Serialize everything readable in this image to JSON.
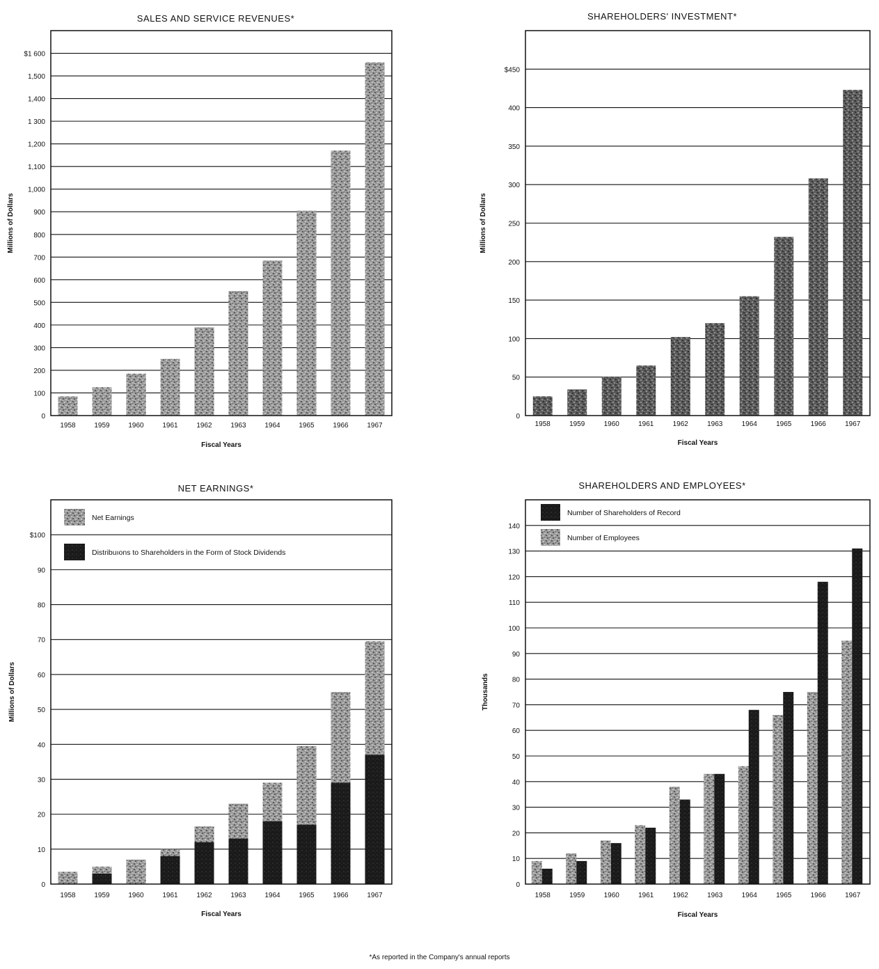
{
  "footnote": "*As reported in the Company's annual reports",
  "chart_data": [
    {
      "id": "sales",
      "type": "bar",
      "title": "SALES AND SERVICE REVENUES*",
      "xlabel": "Fiscal Years",
      "ylabel": "Millions of Dollars",
      "categories": [
        "1958",
        "1959",
        "1960",
        "1961",
        "1962",
        "1963",
        "1964",
        "1965",
        "1966",
        "1967"
      ],
      "ylim": [
        0,
        1700
      ],
      "yticks": [
        0,
        100,
        200,
        300,
        400,
        500,
        600,
        700,
        800,
        900,
        1000,
        1100,
        1200,
        1300,
        1400,
        1500,
        1600
      ],
      "ytick_labels": [
        "0",
        "100",
        "200",
        "300",
        "400",
        "500",
        "600",
        "700",
        "800",
        "900",
        "1,000",
        "1,100",
        "1,200",
        "1 300",
        "1,400",
        "1,500",
        "$1 600"
      ],
      "grid": true,
      "series": [
        {
          "values": [
            85,
            125,
            185,
            250,
            390,
            550,
            685,
            905,
            1170,
            1560
          ],
          "color": "light-stipple"
        }
      ]
    },
    {
      "id": "investment",
      "type": "bar",
      "title": "SHAREHOLDERS' INVESTMENT*",
      "xlabel": "Fiscal Years",
      "ylabel": "Millions of Dollars",
      "categories": [
        "1958",
        "1959",
        "1960",
        "1961",
        "1962",
        "1963",
        "1964",
        "1965",
        "1966",
        "1967"
      ],
      "ylim": [
        0,
        500
      ],
      "yticks": [
        0,
        50,
        100,
        150,
        200,
        250,
        300,
        350,
        400,
        450
      ],
      "ytick_labels": [
        "0",
        "50",
        "100",
        "150",
        "200",
        "250",
        "300",
        "350",
        "400",
        "$450"
      ],
      "grid": true,
      "series": [
        {
          "values": [
            25,
            34,
            50,
            65,
            102,
            120,
            155,
            232,
            308,
            423
          ],
          "color": "dark-stipple"
        }
      ]
    },
    {
      "id": "earnings",
      "type": "bar",
      "title": "NET EARNINGS*",
      "xlabel": "Fiscal Years",
      "ylabel": "Millions of Dollars",
      "categories": [
        "1958",
        "1959",
        "1960",
        "1961",
        "1962",
        "1963",
        "1964",
        "1965",
        "1966",
        "1967"
      ],
      "ylim": [
        0,
        110
      ],
      "yticks": [
        0,
        10,
        20,
        30,
        40,
        50,
        60,
        70,
        80,
        90,
        100
      ],
      "ytick_labels": [
        "0",
        "10",
        "20",
        "30",
        "40",
        "50",
        "60",
        "70",
        "80",
        "90",
        "$100"
      ],
      "grid": true,
      "legend_position": "top-left",
      "overlay": true,
      "series": [
        {
          "name": "Net Earnings",
          "values": [
            3.5,
            5,
            7,
            10,
            16.5,
            23,
            29,
            39.5,
            55,
            69.5
          ],
          "color": "light-stipple"
        },
        {
          "name": "Distribuıons to Shareholders in the Form of Stock Dividends",
          "values": [
            0,
            3,
            0,
            8,
            12,
            13,
            18,
            17,
            29,
            37
          ],
          "color": "dark"
        }
      ]
    },
    {
      "id": "people",
      "type": "bar",
      "title": "SHAREHOLDERS AND EMPLOYEES*",
      "xlabel": "Fiscal Years",
      "ylabel": "Thousands",
      "categories": [
        "1958",
        "1959",
        "1960",
        "1961",
        "1962",
        "1963",
        "1964",
        "1965",
        "1966",
        "1967"
      ],
      "ylim": [
        0,
        150
      ],
      "yticks": [
        0,
        10,
        20,
        30,
        40,
        50,
        60,
        70,
        80,
        90,
        100,
        110,
        120,
        130,
        140
      ],
      "ytick_labels": [
        "0",
        "10",
        "20",
        "30",
        "40",
        "50",
        "60",
        "70",
        "80",
        "90",
        "100",
        "110",
        "120",
        "130",
        "140"
      ],
      "grid": true,
      "legend_position": "top-left",
      "series": [
        {
          "name": "Number of Employees",
          "values": [
            9,
            12,
            17,
            23,
            38,
            43,
            46,
            66,
            75,
            95
          ],
          "color": "light-stipple"
        },
        {
          "name": "Number of Shareholders of Record",
          "values": [
            6,
            9,
            16,
            22,
            33,
            43,
            68,
            75,
            118,
            131
          ],
          "color": "dark"
        }
      ],
      "legend_order": [
        1,
        0
      ]
    }
  ]
}
